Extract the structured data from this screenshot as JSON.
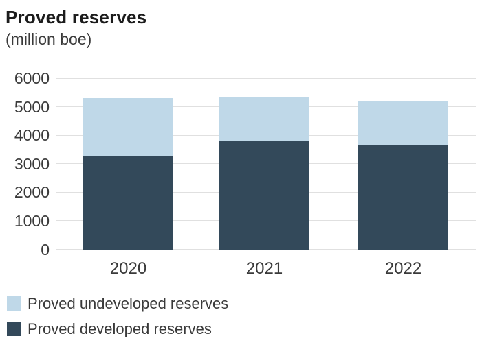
{
  "header": {
    "title": "Proved reserves",
    "subtitle": "(million boe)"
  },
  "chart_data": {
    "type": "bar",
    "stacked": true,
    "title": "Proved reserves",
    "subtitle": "(million boe)",
    "categories": [
      "2020",
      "2021",
      "2022"
    ],
    "series": [
      {
        "name": "Proved developed reserves",
        "color": "#33495a",
        "values": [
          3250,
          3820,
          3670
        ]
      },
      {
        "name": "Proved undeveloped reserves",
        "color": "#bfd8e8",
        "values": [
          2050,
          1540,
          1530
        ]
      }
    ],
    "totals": [
      5300,
      5360,
      5200
    ],
    "xlabel": "",
    "ylabel": "million boe",
    "ylim": [
      0,
      6000
    ],
    "yticks": [
      0,
      1000,
      2000,
      3000,
      4000,
      5000,
      6000
    ],
    "grid": true,
    "legend_position": "bottom-left",
    "legend": [
      {
        "label": "Proved undeveloped reserves",
        "color": "#bfd8e8"
      },
      {
        "label": "Proved developed reserves",
        "color": "#33495a"
      }
    ],
    "colors": {
      "developed": "#33495a",
      "undeveloped": "#bfd8e8",
      "grid": "#e0e0e0",
      "axis_text": "#3a3a3a",
      "title_text": "#1c1c1c"
    }
  }
}
